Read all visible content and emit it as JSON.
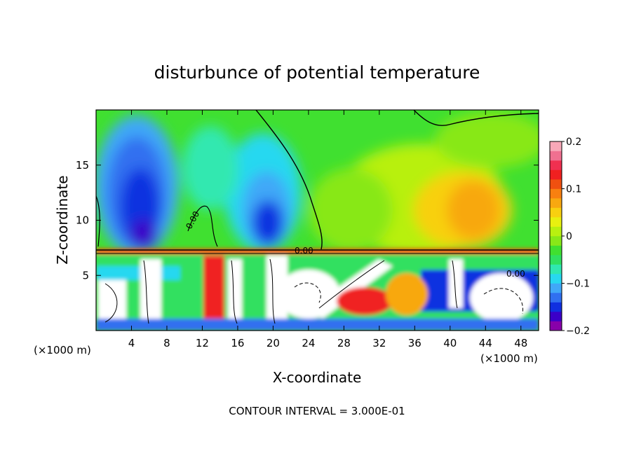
{
  "chart_data": {
    "type": "heatmap",
    "title": "disturbunce of potential temperature",
    "xlabel": "X-coordinate",
    "ylabel": "Z-coordinate",
    "x_unit": "(×1000 m)",
    "x_unit_right": "(×1000 m)",
    "xlim": [
      0,
      50
    ],
    "ylim": [
      0,
      20
    ],
    "x_ticks": [
      4,
      8,
      12,
      16,
      20,
      24,
      28,
      32,
      36,
      40,
      44,
      48
    ],
    "y_ticks": [
      5,
      10,
      15
    ],
    "colorbar": {
      "range": [
        -0.2,
        0.2
      ],
      "tick_values": [
        0.2,
        0.1,
        0,
        -0.1,
        -0.2
      ],
      "tick_labels": [
        "0.2",
        "0.1",
        "0",
        "−0.1",
        "−0.2"
      ],
      "colors": [
        "#8800aa",
        "#3b00c8",
        "#1030e0",
        "#3070f0",
        "#40a8f8",
        "#28d8f0",
        "#30e8b0",
        "#30e060",
        "#40e030",
        "#88e818",
        "#b8f010",
        "#e8f010",
        "#f8d010",
        "#f8a810",
        "#f88010",
        "#f05010",
        "#f02020",
        "#f03050",
        "#f07090",
        "#f8a8b8"
      ]
    },
    "contour_label": "0.00",
    "footer": "CONTOUR INTERVAL = 3.000E-01"
  },
  "colors": {
    "background": "#ffffff",
    "ink": "#000000"
  }
}
